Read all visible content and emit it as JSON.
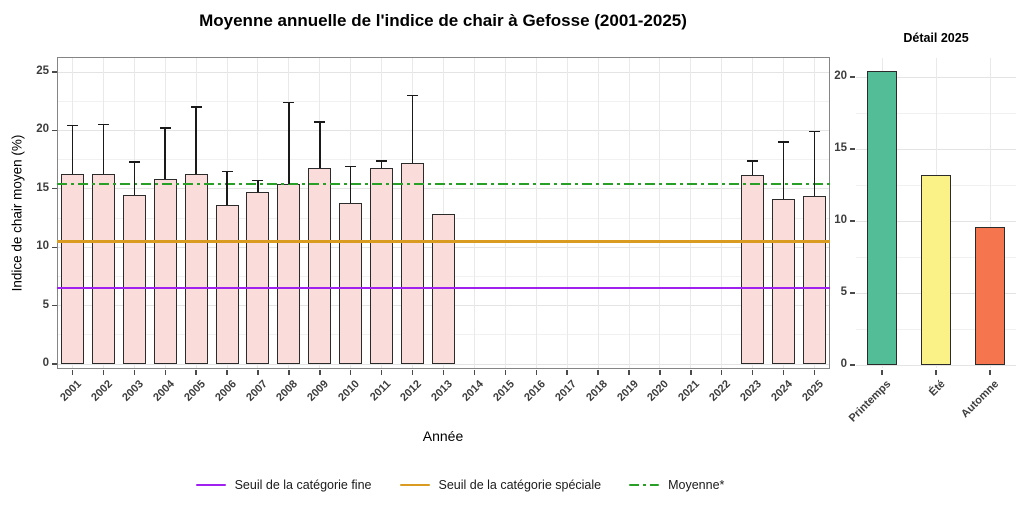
{
  "chart_data": [
    {
      "type": "bar",
      "title": "Moyenne annuelle de l'indice de chair à Gefosse (2001-2025)",
      "xlabel": "Année",
      "ylabel": "Indice de chair moyen (%)",
      "ylim": [
        0,
        26
      ],
      "yticks": [
        0,
        5,
        10,
        15,
        20,
        25
      ],
      "yticks_minor": [
        2.5,
        7.5,
        12.5,
        17.5,
        22.5
      ],
      "grid": true,
      "legend_position": "bottom",
      "categories": [
        "2001",
        "2002",
        "2003",
        "2004",
        "2005",
        "2006",
        "2007",
        "2008",
        "2009",
        "2010",
        "2011",
        "2012",
        "2013",
        "2014",
        "2015",
        "2016",
        "2017",
        "2018",
        "2019",
        "2020",
        "2021",
        "2022",
        "2023",
        "2024",
        "2025"
      ],
      "values": [
        16.3,
        16.3,
        14.5,
        15.8,
        16.3,
        13.6,
        14.7,
        15.4,
        16.8,
        13.8,
        16.8,
        17.2,
        12.8,
        null,
        null,
        null,
        null,
        null,
        null,
        null,
        null,
        null,
        16.2,
        14.1,
        14.4
      ],
      "error_high": [
        20.4,
        20.5,
        17.3,
        20.2,
        22.0,
        16.5,
        15.7,
        22.4,
        20.7,
        16.9,
        17.4,
        23.0,
        null,
        null,
        null,
        null,
        null,
        null,
        null,
        null,
        null,
        null,
        17.4,
        19.0,
        19.9
      ],
      "bar_fill": "#FADDDB",
      "bar_border": "#2B2B2B",
      "error_color": "#1A1A1A",
      "reference_lines": [
        {
          "label": "Seuil de la catégorie fine",
          "value": 6.5,
          "color": "#A020F0",
          "style": "solid"
        },
        {
          "label": "Seuil de la catégorie spéciale",
          "value": 10.5,
          "color": "#D99C20",
          "style": "solid"
        },
        {
          "label": "Moyenne*",
          "value": 15.4,
          "color": "#28A028",
          "style": "dashdot"
        }
      ]
    },
    {
      "type": "bar",
      "title": "Détail 2025",
      "xlabel": "",
      "ylabel": "",
      "ylim": [
        0,
        21
      ],
      "yticks": [
        0,
        5,
        10,
        15,
        20
      ],
      "yticks_minor": [
        2.5,
        7.5,
        12.5,
        17.5
      ],
      "grid": true,
      "categories": [
        "Printemps",
        "Été",
        "Automne"
      ],
      "values": [
        20.4,
        13.2,
        9.6
      ],
      "bar_colors": [
        "#52BD96",
        "#FAF287",
        "#F5764E"
      ],
      "bar_border": "#2B2B2B"
    }
  ]
}
